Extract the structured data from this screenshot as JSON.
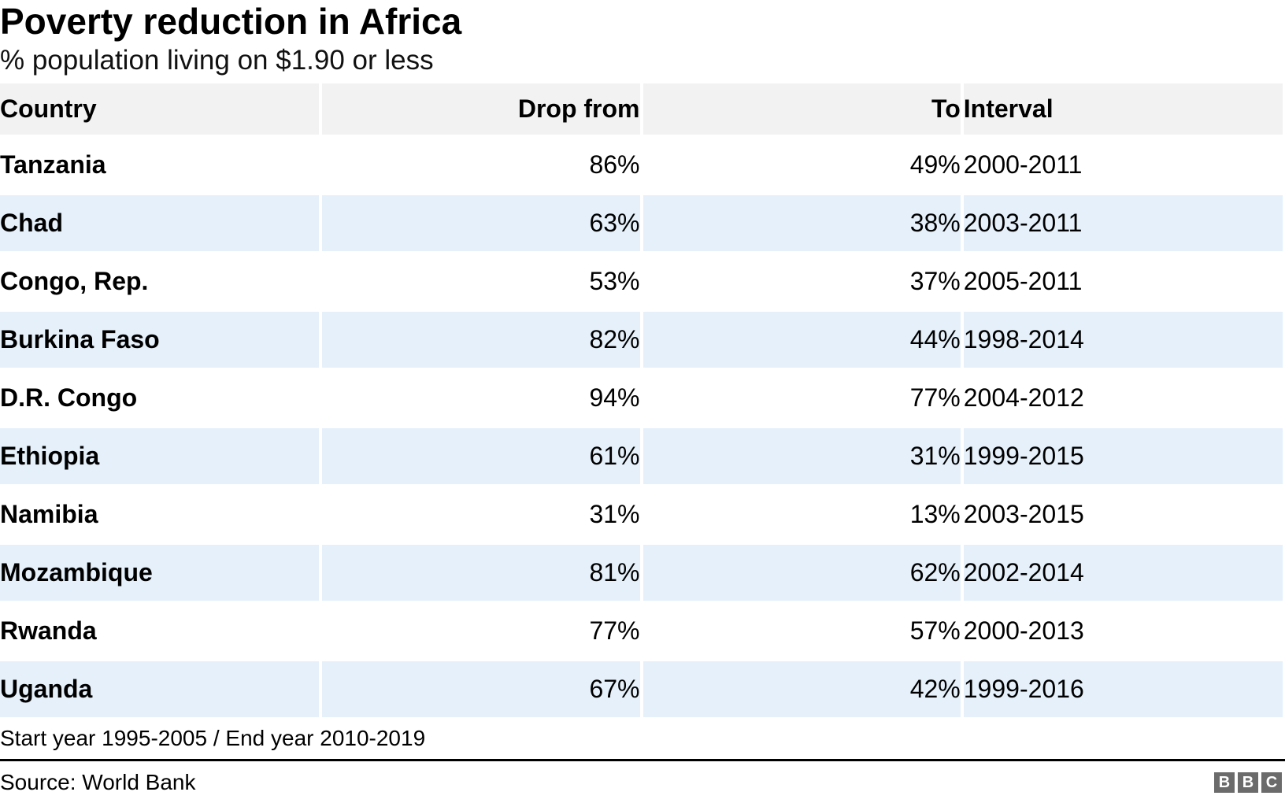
{
  "title": "Poverty reduction in Africa",
  "subtitle": "% population living on $1.90 or less",
  "table": {
    "columns": [
      {
        "label": "Country"
      },
      {
        "label": "Drop from"
      },
      {
        "label": "To"
      },
      {
        "label": "Interval"
      }
    ],
    "rows": [
      {
        "country": "Tanzania",
        "drop_from": "86%",
        "to": "49%",
        "interval": "2000-2011"
      },
      {
        "country": "Chad",
        "drop_from": "63%",
        "to": "38%",
        "interval": "2003-2011"
      },
      {
        "country": "Congo, Rep.",
        "drop_from": "53%",
        "to": "37%",
        "interval": "2005-2011"
      },
      {
        "country": "Burkina Faso",
        "drop_from": "82%",
        "to": "44%",
        "interval": "1998-2014"
      },
      {
        "country": "D.R. Congo",
        "drop_from": "94%",
        "to": "77%",
        "interval": "2004-2012"
      },
      {
        "country": "Ethiopia",
        "drop_from": "61%",
        "to": "31%",
        "interval": "1999-2015"
      },
      {
        "country": "Namibia",
        "drop_from": "31%",
        "to": "13%",
        "interval": "2003-2015"
      },
      {
        "country": "Mozambique",
        "drop_from": "81%",
        "to": "62%",
        "interval": "2002-2014"
      },
      {
        "country": "Rwanda",
        "drop_from": "77%",
        "to": "57%",
        "interval": "2000-2013"
      },
      {
        "country": "Uganda",
        "drop_from": "67%",
        "to": "42%",
        "interval": "1999-2016"
      }
    ]
  },
  "footnote": "Start year 1995-2005 / End year 2010-2019",
  "source": "Source: World Bank",
  "logo": {
    "letters": [
      "B",
      "B",
      "C"
    ]
  },
  "colors": {
    "row_stripe_blue": "#e5f0fa",
    "header_gray": "#f2f2f2",
    "rule_black": "#000000",
    "logo_gray": "#6b6b6b",
    "text_black": "#000000"
  },
  "chart_data": {
    "type": "table",
    "title": "Poverty reduction in Africa",
    "subtitle": "% population living on $1.90 or less",
    "columns": [
      "Country",
      "Drop from",
      "To",
      "Interval"
    ],
    "rows": [
      [
        "Tanzania",
        "86%",
        "49%",
        "2000-2011"
      ],
      [
        "Chad",
        "63%",
        "38%",
        "2003-2011"
      ],
      [
        "Congo, Rep.",
        "53%",
        "37%",
        "2005-2011"
      ],
      [
        "Burkina Faso",
        "82%",
        "44%",
        "1998-2014"
      ],
      [
        "D.R. Congo",
        "94%",
        "77%",
        "2004-2012"
      ],
      [
        "Ethiopia",
        "61%",
        "31%",
        "1999-2015"
      ],
      [
        "Namibia",
        "31%",
        "13%",
        "2003-2015"
      ],
      [
        "Mozambique",
        "81%",
        "62%",
        "2002-2014"
      ],
      [
        "Rwanda",
        "77%",
        "57%",
        "2000-2013"
      ],
      [
        "Uganda",
        "67%",
        "42%",
        "1999-2016"
      ]
    ],
    "footnote": "Start year 1995-2005 / End year 2010-2019",
    "source": "Source: World Bank",
    "layout_hints": {
      "striped": true,
      "stripe_color": "#e5f0fa",
      "header_bg": "#f2f2f2",
      "grid": "white-gaps"
    }
  }
}
